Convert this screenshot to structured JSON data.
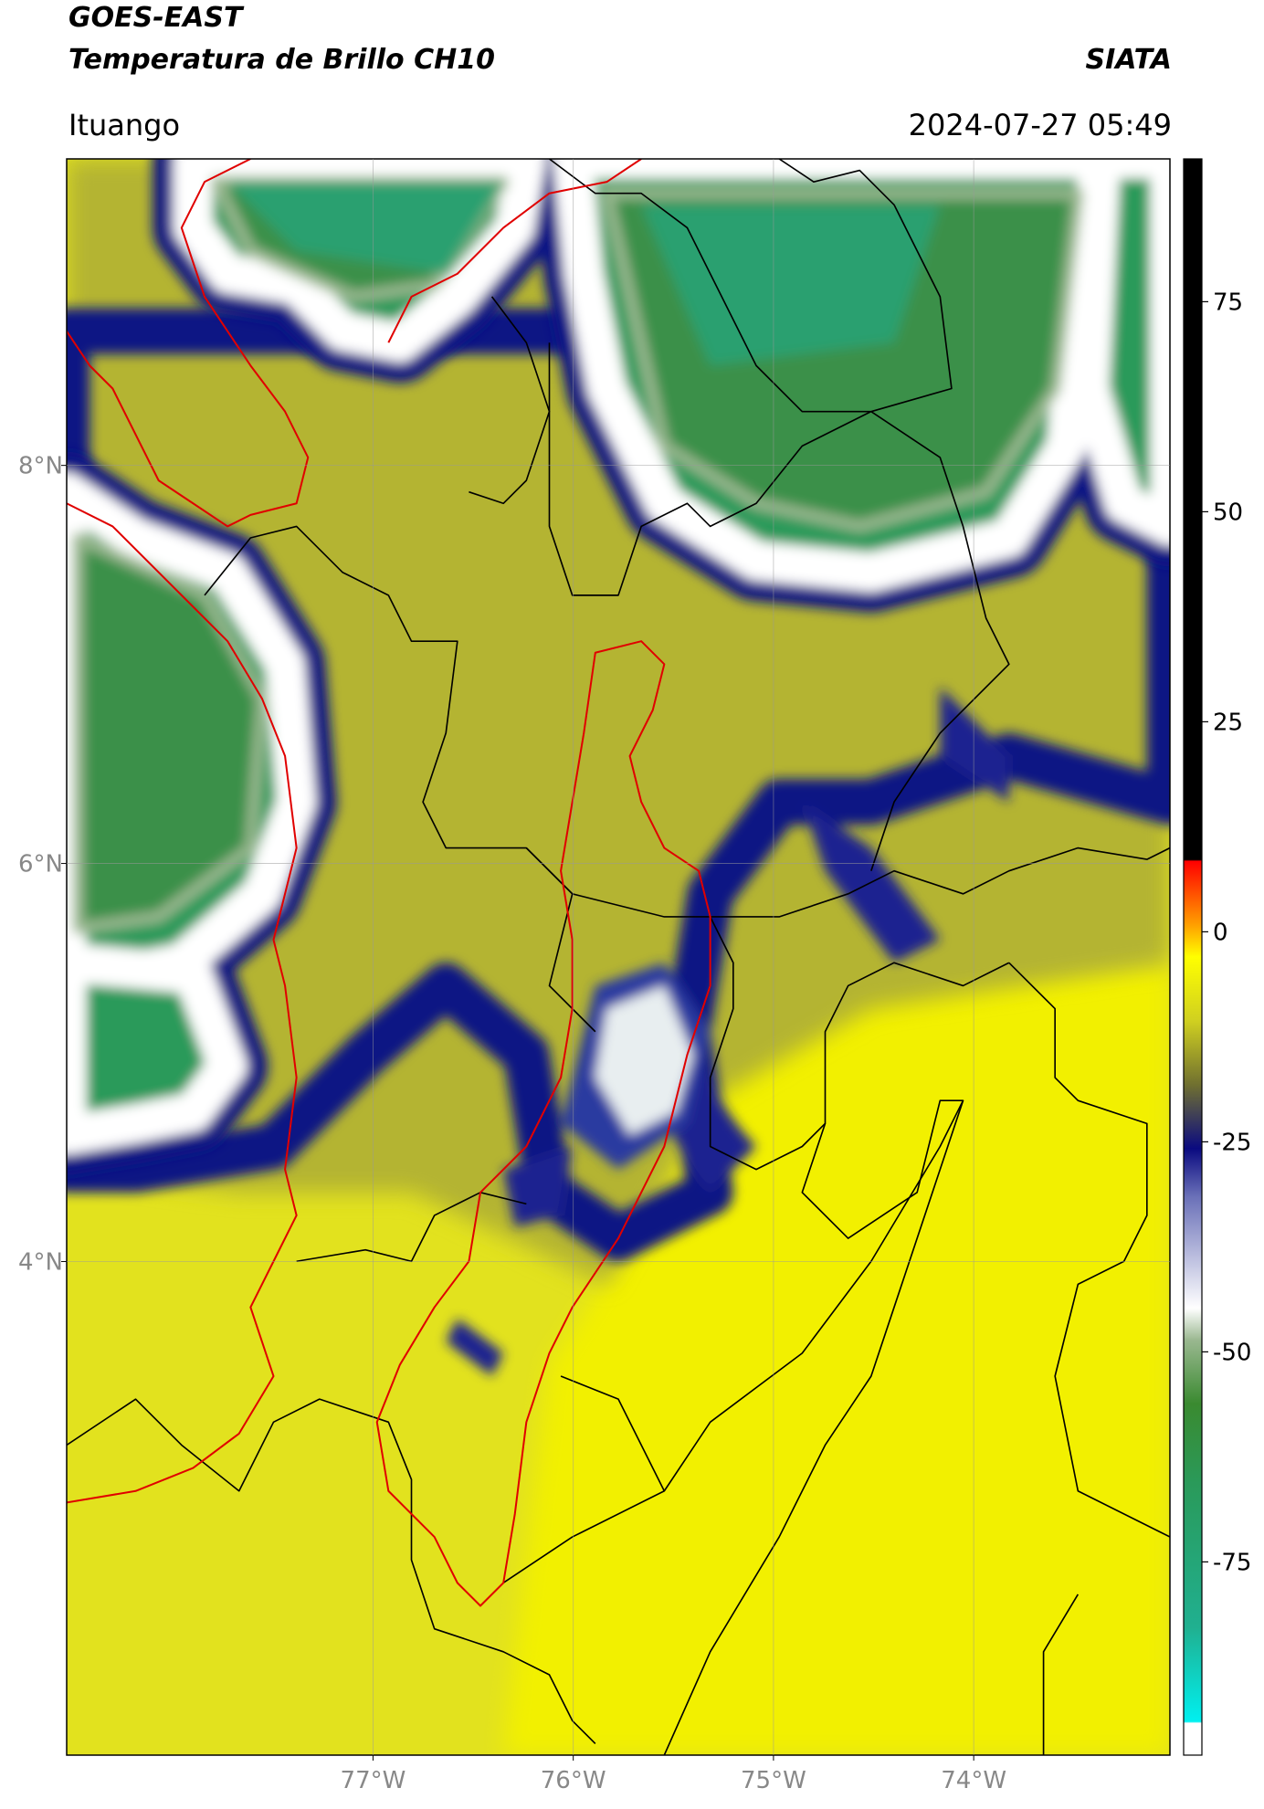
{
  "chart_data": {
    "type": "map",
    "title": "GOES-EAST",
    "subtitle": "Temperatura de Brillo CH10",
    "brand": "SIATA",
    "location": "Ituango",
    "datetime": "2024-07-27 05:49",
    "xlim": [
      -78.53,
      -73.02
    ],
    "ylim": [
      1.52,
      9.54
    ],
    "xticks": [
      {
        "value": -77,
        "label": "77°W"
      },
      {
        "value": -76,
        "label": "76°W"
      },
      {
        "value": -75,
        "label": "75°W"
      },
      {
        "value": -74,
        "label": "74°W"
      }
    ],
    "yticks": [
      {
        "value": 8,
        "label": "8°N"
      },
      {
        "value": 6,
        "label": "6°N"
      },
      {
        "value": 4,
        "label": "4°N"
      }
    ],
    "grid": true,
    "colorbar": {
      "lim": [
        -98,
        92
      ],
      "ticks": [
        -75,
        -50,
        -25,
        0,
        25,
        50,
        75
      ]
    }
  }
}
